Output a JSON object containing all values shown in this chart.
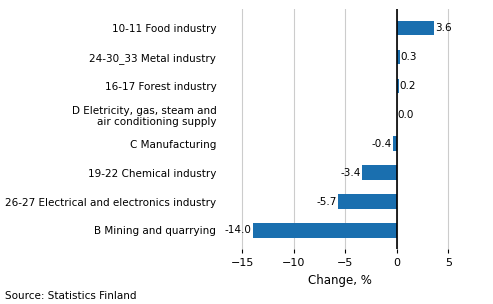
{
  "categories": [
    "B Mining and quarrying",
    "26-27 Electrical and electronics industry",
    "19-22 Chemical industry",
    "C Manufacturing",
    "D Eletricity, gas, steam and\nair conditioning supply",
    "16-17 Forest industry",
    "24-30_33 Metal industry",
    "10-11 Food industry"
  ],
  "values": [
    -14.0,
    -5.7,
    -3.4,
    -0.4,
    0.0,
    0.2,
    0.3,
    3.6
  ],
  "bar_color": "#1a6faf",
  "xlabel": "Change, %",
  "source": "Source: Statistics Finland",
  "xlim": [
    -17,
    6
  ],
  "xticks": [
    -15,
    -10,
    -5,
    0,
    5
  ],
  "bar_height": 0.5,
  "value_fontsize": 7.5,
  "label_fontsize": 7.5,
  "xlabel_fontsize": 8.5,
  "source_fontsize": 7.5,
  "tick_fontsize": 8.0
}
